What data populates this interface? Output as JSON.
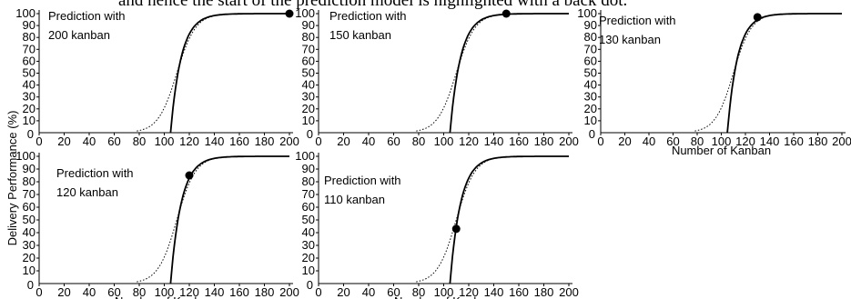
{
  "caption": "and hence the start of the prediction model is highlighted with a back dot.",
  "ylabel": "Delivery Performance (%)",
  "xlabel": "Number of Kanban",
  "chart_data": [
    {
      "type": "line",
      "annotation": [
        "Prediction with",
        "200 kanban"
      ],
      "kanban": 200,
      "dot": [
        200,
        100
      ],
      "xlabel": "",
      "xlim": [
        0,
        200
      ],
      "ylim": [
        0,
        100
      ],
      "xticks": [
        0,
        20,
        40,
        60,
        80,
        100,
        120,
        140,
        160,
        180,
        200
      ],
      "yticks": [
        10,
        20,
        30,
        40,
        50,
        60,
        70,
        80,
        90,
        100
      ]
    },
    {
      "type": "line",
      "annotation": [
        "Prediction with",
        "150 kanban"
      ],
      "kanban": 150,
      "dot": [
        150,
        100
      ],
      "xlabel": "",
      "xlim": [
        0,
        200
      ],
      "ylim": [
        0,
        100
      ],
      "xticks": [
        0,
        20,
        40,
        60,
        80,
        100,
        120,
        140,
        160,
        180,
        200
      ],
      "yticks": [
        10,
        20,
        30,
        40,
        50,
        60,
        70,
        80,
        90,
        100
      ]
    },
    {
      "type": "line",
      "annotation": [
        "Prediction with",
        "130 kanban"
      ],
      "kanban": 130,
      "dot": [
        130,
        97
      ],
      "xlabel": "Number of Kanban",
      "xlim": [
        0,
        200
      ],
      "ylim": [
        0,
        100
      ],
      "xticks": [
        0,
        20,
        40,
        60,
        80,
        100,
        120,
        140,
        160,
        180,
        200
      ],
      "yticks": [
        10,
        20,
        30,
        40,
        50,
        60,
        70,
        80,
        90,
        100
      ]
    },
    {
      "type": "line",
      "annotation": [
        "Prediction with",
        "120 kanban"
      ],
      "kanban": 120,
      "dot": [
        120,
        85
      ],
      "xlabel": "Number of Kanban",
      "xlim": [
        0,
        200
      ],
      "ylim": [
        0,
        100
      ],
      "xticks": [
        0,
        20,
        40,
        60,
        80,
        100,
        120,
        140,
        160,
        180,
        200
      ],
      "yticks": [
        10,
        20,
        30,
        40,
        50,
        60,
        70,
        80,
        90,
        100
      ]
    },
    {
      "type": "line",
      "annotation": [
        "Prediction with",
        "110 kanban"
      ],
      "kanban": 110,
      "dot": [
        110,
        43
      ],
      "xlabel": "Number of Kanban",
      "xlim": [
        0,
        200
      ],
      "ylim": [
        0,
        100
      ],
      "xticks": [
        0,
        20,
        40,
        60,
        80,
        100,
        120,
        140,
        160,
        180,
        200
      ],
      "yticks": [
        10,
        20,
        30,
        40,
        50,
        60,
        70,
        80,
        90,
        100
      ]
    }
  ]
}
